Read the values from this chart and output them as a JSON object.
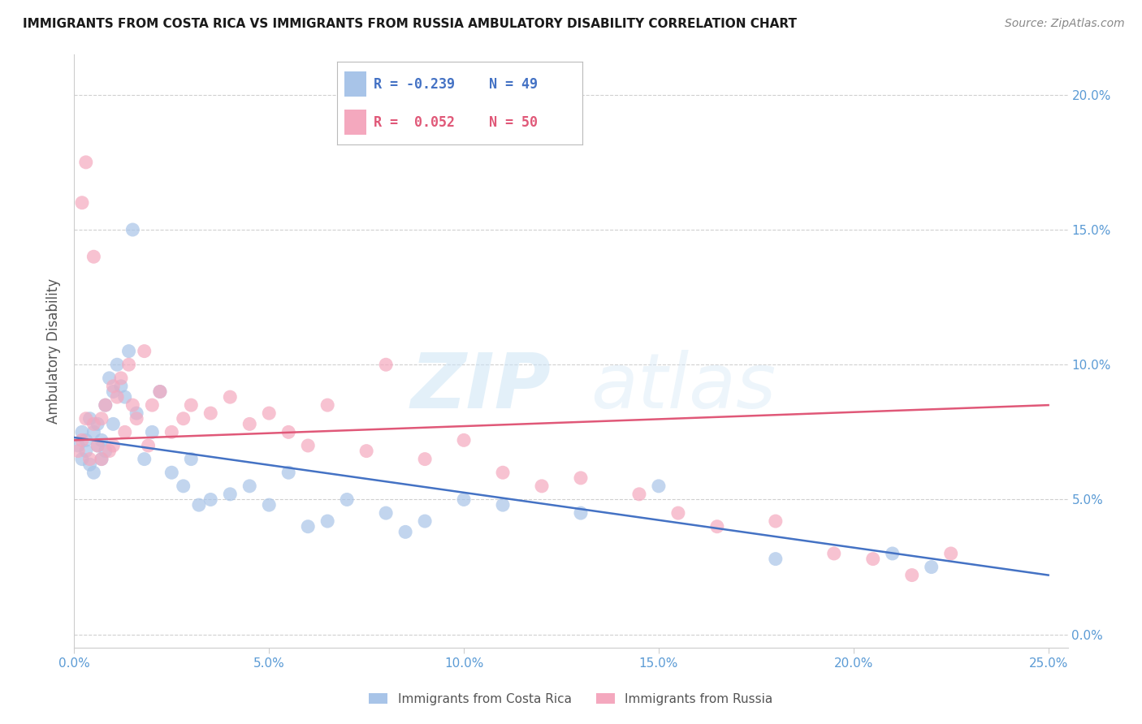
{
  "title": "IMMIGRANTS FROM COSTA RICA VS IMMIGRANTS FROM RUSSIA AMBULATORY DISABILITY CORRELATION CHART",
  "source": "Source: ZipAtlas.com",
  "xlim": [
    0.0,
    0.255
  ],
  "ylim": [
    -0.005,
    0.215
  ],
  "xticks": [
    0.0,
    0.05,
    0.1,
    0.15,
    0.2,
    0.25
  ],
  "yticks": [
    0.0,
    0.05,
    0.1,
    0.15,
    0.2
  ],
  "scatter1_color": "#a8c4e8",
  "scatter2_color": "#f4a8be",
  "line1_color": "#4472c4",
  "line2_color": "#e05878",
  "legend_r1": "R = -0.239",
  "legend_n1": "N = 49",
  "legend_r2": "R =  0.052",
  "legend_n2": "N = 50",
  "label1": "Immigrants from Costa Rica",
  "label2": "Immigrants from Russia",
  "watermark": "ZIPatlas",
  "background_color": "#ffffff",
  "grid_color": "#d0d0d0",
  "tick_color": "#5b9bd5",
  "costa_rica_x": [
    0.001,
    0.002,
    0.002,
    0.003,
    0.003,
    0.004,
    0.004,
    0.005,
    0.005,
    0.006,
    0.006,
    0.007,
    0.007,
    0.008,
    0.008,
    0.009,
    0.01,
    0.01,
    0.011,
    0.012,
    0.013,
    0.014,
    0.015,
    0.016,
    0.018,
    0.02,
    0.022,
    0.025,
    0.028,
    0.03,
    0.032,
    0.035,
    0.04,
    0.045,
    0.05,
    0.055,
    0.06,
    0.065,
    0.07,
    0.08,
    0.085,
    0.09,
    0.1,
    0.11,
    0.13,
    0.15,
    0.18,
    0.21,
    0.22
  ],
  "costa_rica_y": [
    0.07,
    0.075,
    0.065,
    0.068,
    0.072,
    0.08,
    0.063,
    0.075,
    0.06,
    0.078,
    0.07,
    0.072,
    0.065,
    0.085,
    0.068,
    0.095,
    0.09,
    0.078,
    0.1,
    0.092,
    0.088,
    0.105,
    0.15,
    0.082,
    0.065,
    0.075,
    0.09,
    0.06,
    0.055,
    0.065,
    0.048,
    0.05,
    0.052,
    0.055,
    0.048,
    0.06,
    0.04,
    0.042,
    0.05,
    0.045,
    0.038,
    0.042,
    0.05,
    0.048,
    0.045,
    0.055,
    0.028,
    0.03,
    0.025
  ],
  "russia_x": [
    0.001,
    0.002,
    0.002,
    0.003,
    0.003,
    0.004,
    0.005,
    0.005,
    0.006,
    0.007,
    0.007,
    0.008,
    0.009,
    0.01,
    0.01,
    0.011,
    0.012,
    0.013,
    0.014,
    0.015,
    0.016,
    0.018,
    0.019,
    0.02,
    0.022,
    0.025,
    0.028,
    0.03,
    0.035,
    0.04,
    0.045,
    0.05,
    0.055,
    0.06,
    0.065,
    0.075,
    0.08,
    0.09,
    0.1,
    0.11,
    0.12,
    0.13,
    0.145,
    0.155,
    0.165,
    0.18,
    0.195,
    0.205,
    0.215,
    0.225
  ],
  "russia_y": [
    0.068,
    0.072,
    0.16,
    0.08,
    0.175,
    0.065,
    0.078,
    0.14,
    0.07,
    0.08,
    0.065,
    0.085,
    0.068,
    0.092,
    0.07,
    0.088,
    0.095,
    0.075,
    0.1,
    0.085,
    0.08,
    0.105,
    0.07,
    0.085,
    0.09,
    0.075,
    0.08,
    0.085,
    0.082,
    0.088,
    0.078,
    0.082,
    0.075,
    0.07,
    0.085,
    0.068,
    0.1,
    0.065,
    0.072,
    0.06,
    0.055,
    0.058,
    0.052,
    0.045,
    0.04,
    0.042,
    0.03,
    0.028,
    0.022,
    0.03
  ]
}
